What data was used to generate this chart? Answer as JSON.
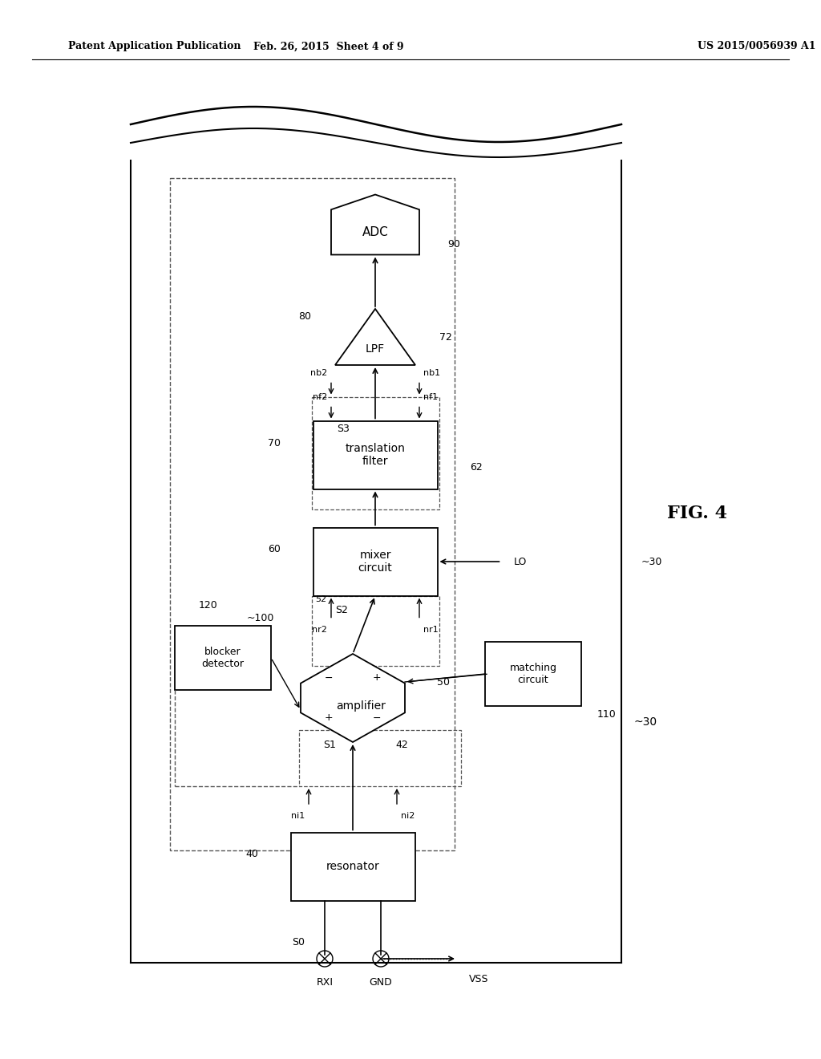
{
  "title_left": "Patent Application Publication",
  "title_mid": "Feb. 26, 2015  Sheet 4 of 9",
  "title_right": "US 2015/0056939 A1",
  "fig_label": "FIG. 4",
  "bg_color": "#ffffff",
  "line_color": "#000000"
}
